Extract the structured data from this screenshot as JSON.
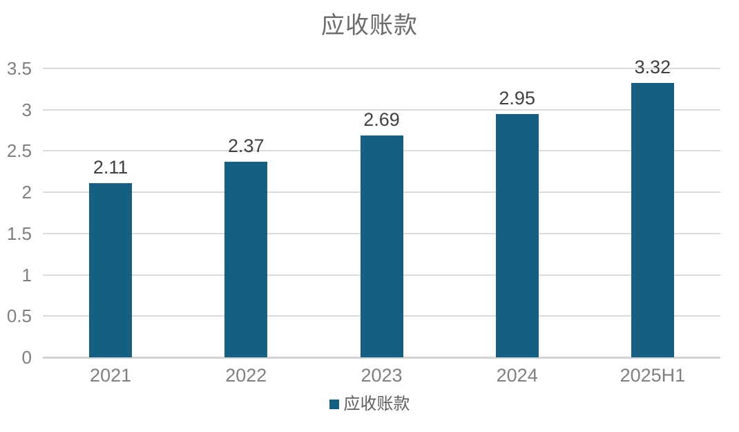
{
  "title": "应收账款",
  "legend": {
    "swatch_icon": "square-swatch-icon",
    "label": "应收账款",
    "position": "bottom"
  },
  "colors": {
    "bar": "#155f82",
    "gridline": "#dbdbdb",
    "axis_baseline": "#d4d4d4",
    "axis_tick_text": "#7f7f7f",
    "title_text": "#6b6b6b",
    "data_label_text": "#404040",
    "background": "#ffffff"
  },
  "chart_data": {
    "type": "bar",
    "title": "应收账款",
    "categories": [
      "2021",
      "2022",
      "2023",
      "2024",
      "2025H1"
    ],
    "values": [
      2.11,
      2.37,
      2.69,
      2.95,
      3.32
    ],
    "data_labels": [
      "2.11",
      "2.37",
      "2.69",
      "2.95",
      "3.32"
    ],
    "series": [
      {
        "name": "应收账款",
        "values": [
          2.11,
          2.37,
          2.69,
          2.95,
          3.32
        ]
      }
    ],
    "xlabel": "",
    "ylabel": "",
    "ylim": [
      0,
      3.5
    ],
    "ytick_step": 0.5,
    "yticks": [
      0,
      0.5,
      1,
      1.5,
      2,
      2.5,
      3,
      3.5
    ],
    "ytick_labels": [
      "0",
      "0.5",
      "1",
      "1.5",
      "2",
      "2.5",
      "3",
      "3.5"
    ],
    "grid": true,
    "grid_axis": "y",
    "legend_entries": [
      "应收账款"
    ],
    "legend_position": "bottom"
  }
}
